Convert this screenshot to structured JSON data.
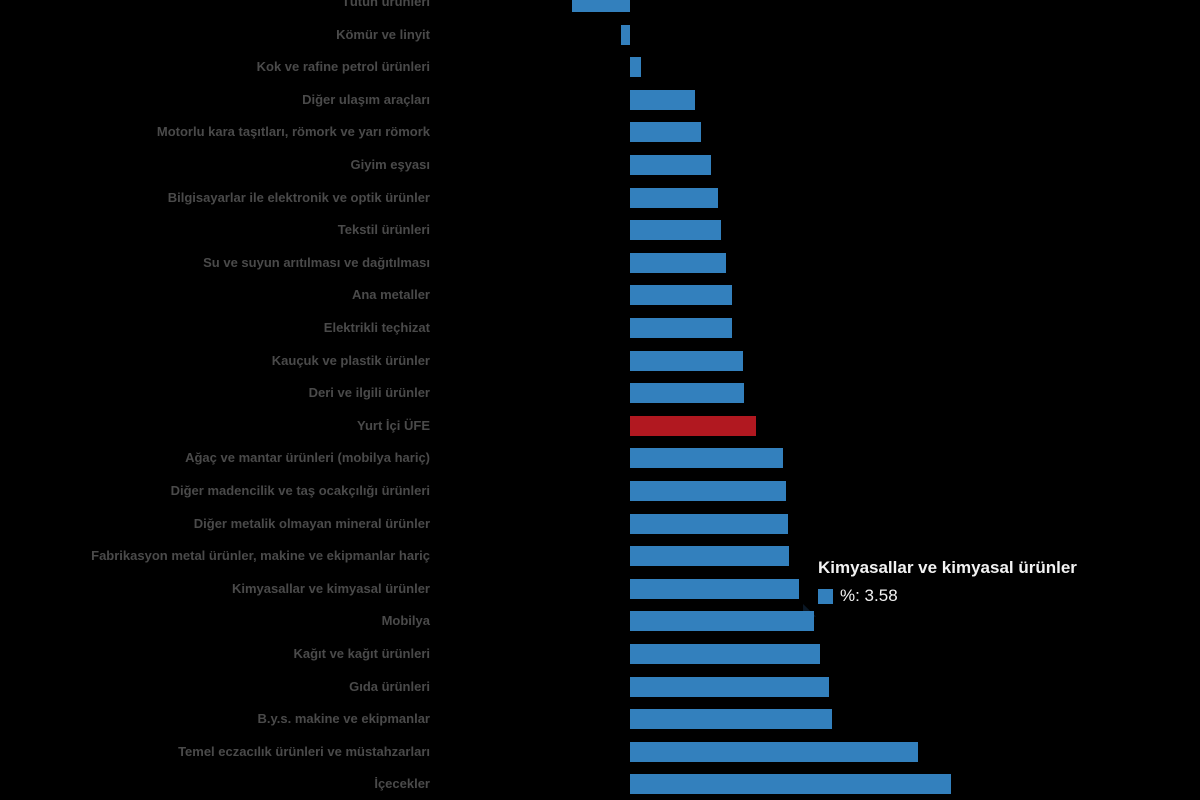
{
  "chart_data": {
    "type": "bar",
    "orientation": "horizontal",
    "title": "",
    "xlabel": "",
    "ylabel": "",
    "unit": "%",
    "grid": false,
    "legend": false,
    "xlim": [
      -1.3,
      7.0
    ],
    "categories": [
      "Tütün ürünleri",
      "Kömür ve linyit",
      "Kok ve rafine petrol ürünleri",
      "Diğer ulaşım araçları",
      "Motorlu kara taşıtları, römork ve yarı römork",
      "Giyim eşyası",
      "Bilgisayarlar ile elektronik ve optik ürünler",
      "Tekstil ürünleri",
      "Su ve suyun arıtılması ve dağıtılması",
      "Ana metaller",
      "Elektrikli teçhizat",
      "Kauçuk ve plastik ürünler",
      "Deri ve ilgili ürünler",
      "Yurt İçi ÜFE",
      "Ağaç ve mantar ürünleri (mobilya hariç)",
      "Diğer madencilik ve taş ocakçılığı ürünleri",
      "Diğer metalik olmayan mineral ürünler",
      "Fabrikasyon metal ürünler, makine ve ekipmanlar hariç",
      "Kimyasallar ve kimyasal ürünler",
      "Mobilya",
      "Kağıt ve kağıt ürünleri",
      "Gıda ürünleri",
      "B.y.s. makine ve ekipmanlar",
      "Temel eczacılık ürünleri ve müstahzarları",
      "İçecekler"
    ],
    "values": [
      -1.23,
      -0.19,
      0.24,
      1.39,
      1.5,
      1.73,
      1.88,
      1.94,
      2.03,
      2.16,
      2.17,
      2.41,
      2.43,
      2.67,
      3.24,
      3.32,
      3.35,
      3.37,
      3.58,
      3.9,
      4.03,
      4.22,
      4.3,
      6.11,
      6.83
    ],
    "highlight_category": "Yurt İçi ÜFE",
    "colors": {
      "bar": "#3380bd",
      "highlight": "#b11820",
      "background": "#000000",
      "label_text": "#4a4a4a"
    }
  },
  "tooltip": {
    "title": "Kimyasallar ve kimyasal ürünler",
    "value_text": "%: 3.58",
    "marker_color": "#3380bd"
  }
}
